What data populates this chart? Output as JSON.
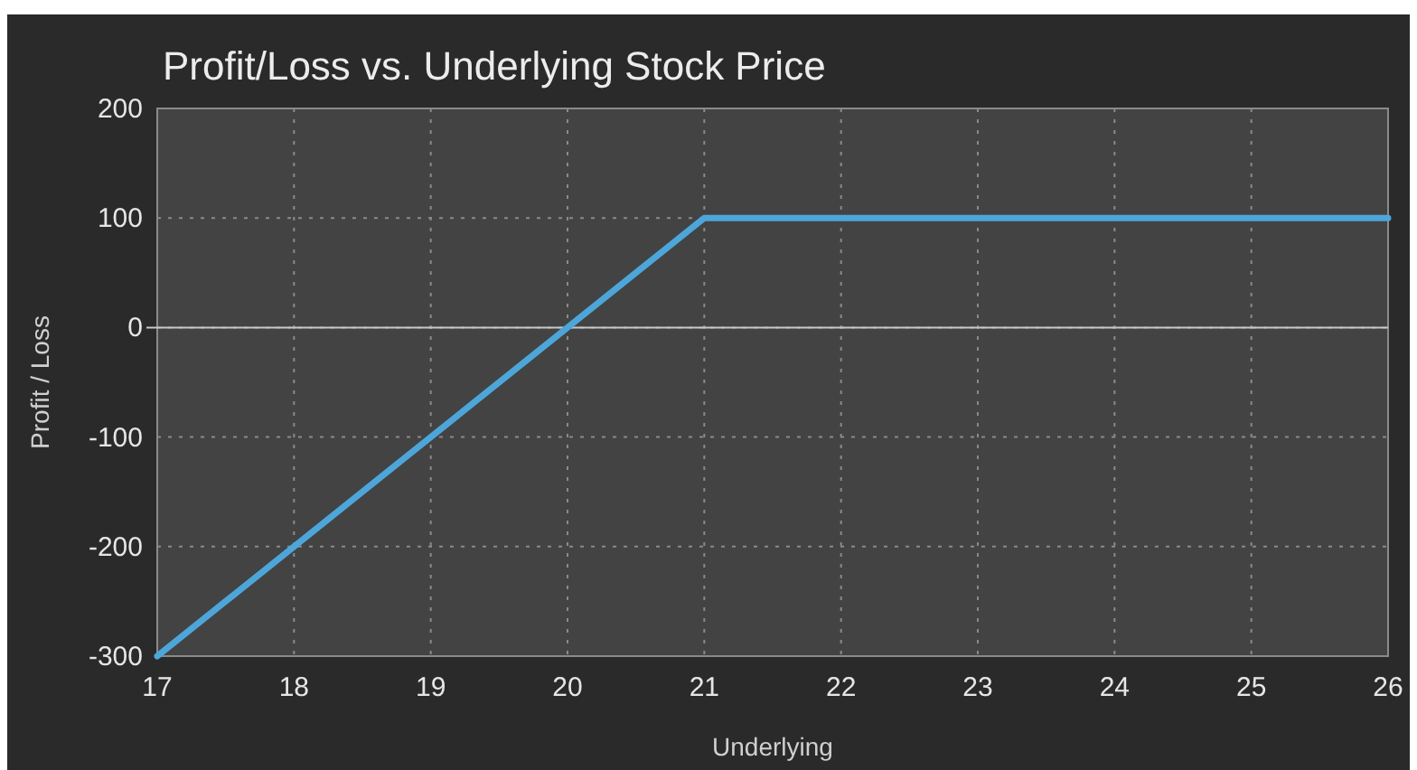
{
  "chart_data": {
    "type": "line",
    "title": "Profit/Loss vs. Underlying Stock Price",
    "xlabel": "Underlying",
    "ylabel": "Profit / Loss",
    "x": [
      17,
      21,
      26
    ],
    "series": [
      {
        "color": "#4da6da",
        "values": [
          -300,
          100,
          100
        ]
      }
    ],
    "xlim": [
      17,
      26
    ],
    "xticks": [
      17,
      18,
      19,
      20,
      21,
      22,
      23,
      24,
      25,
      26
    ],
    "ylim": [
      -300,
      200
    ],
    "yticks": [
      -300,
      -200,
      -100,
      0,
      100,
      200
    ],
    "ref_lines": [
      {
        "axis": "y",
        "value": 0,
        "color": "#c8c8c8",
        "line_style": "solid"
      }
    ],
    "grid": true,
    "marker": "none",
    "line_style": "solid"
  }
}
